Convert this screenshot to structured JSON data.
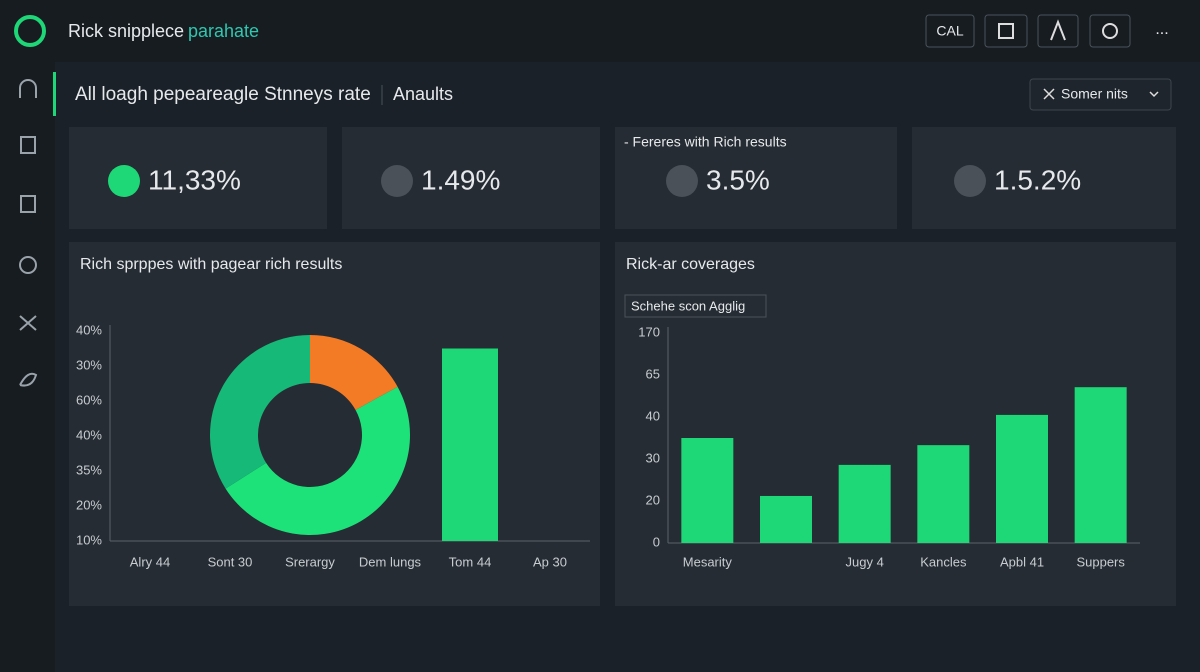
{
  "header": {
    "title_a": "Rick snipplece",
    "title_b": "parahate",
    "button": "CAL",
    "more": "..."
  },
  "page": {
    "title": "All loagh pepeareagle Stnneys rate",
    "tab": "Anaults",
    "filter": "Somer nits"
  },
  "kpis": [
    {
      "value": "11,33%"
    },
    {
      "value": "1.49%"
    },
    {
      "label": "- Fereres with Rich results",
      "value": "3.5%"
    },
    {
      "value": "1.5.2%"
    }
  ],
  "chart_data": [
    {
      "type": "pie",
      "values": [
        17,
        49,
        34
      ],
      "colors": [
        "#f47b25",
        "#1de27a",
        "#16b978"
      ]
    },
    {
      "type": "bar",
      "title": "Rich sprppes with pagear rich results",
      "categories": [
        "Alry 44",
        "Sont 30",
        "Srerargy",
        "Dem lungs",
        "Tom 44",
        "Ap 30"
      ],
      "values": [
        null,
        null,
        null,
        null,
        5.5,
        null
      ],
      "color": "#1ed776",
      "ylim": [
        0,
        6
      ],
      "y_labels": [
        "10%",
        "20%",
        "35%",
        "40%",
        "60%",
        "30%",
        "40%"
      ]
    },
    {
      "type": "bar",
      "title": "Rick-ar coverages",
      "legend": "Schehe scon Agglig",
      "categories": [
        "Mesarity",
        null,
        "Jugy 4",
        "Kancles",
        "Apbl 41",
        "Suppers"
      ],
      "values": [
        2.5,
        1.12,
        1.86,
        2.33,
        3.05,
        3.71
      ],
      "color": "#1ed776",
      "ylim": [
        0,
        5
      ],
      "y_labels": [
        "0",
        "20",
        "30",
        "40",
        "65",
        "170"
      ]
    }
  ]
}
